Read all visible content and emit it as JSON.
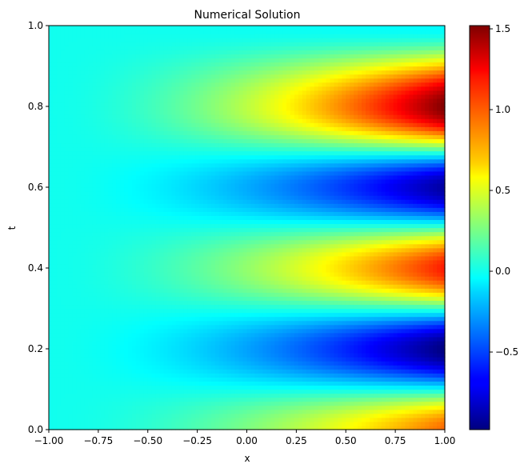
{
  "chart_data": {
    "type": "heatmap",
    "title": "Numerical Solution",
    "xlabel": "x",
    "ylabel": "t",
    "xlim": [
      -1.0,
      1.0
    ],
    "ylim": [
      0.0,
      1.0
    ],
    "x_ticks": [
      "−1.00",
      "−0.75",
      "−0.50",
      "−0.25",
      "0.00",
      "0.25",
      "0.50",
      "0.75",
      "1.00"
    ],
    "y_ticks": [
      "0.0",
      "0.2",
      "0.4",
      "0.6",
      "0.8",
      "1.0"
    ],
    "colormap": "jet",
    "colorbar": {
      "range": [
        -0.98,
        1.52
      ],
      "ticks": [
        "1.5",
        "1.0",
        "0.5",
        "0.0",
        "−0.5"
      ]
    },
    "field_description": {
      "time_extrema": [
        {
          "t": 0.0,
          "value_at_x1": 0.95
        },
        {
          "t": 0.2,
          "value_at_x1": -0.98
        },
        {
          "t": 0.4,
          "value_at_x1": 1.15
        },
        {
          "t": 0.6,
          "value_at_x1": -0.9
        },
        {
          "t": 0.8,
          "value_at_x1": 1.52
        },
        {
          "t": 1.0,
          "value_at_x1": -0.05
        }
      ],
      "left_boundary_value": 0.0
    }
  }
}
